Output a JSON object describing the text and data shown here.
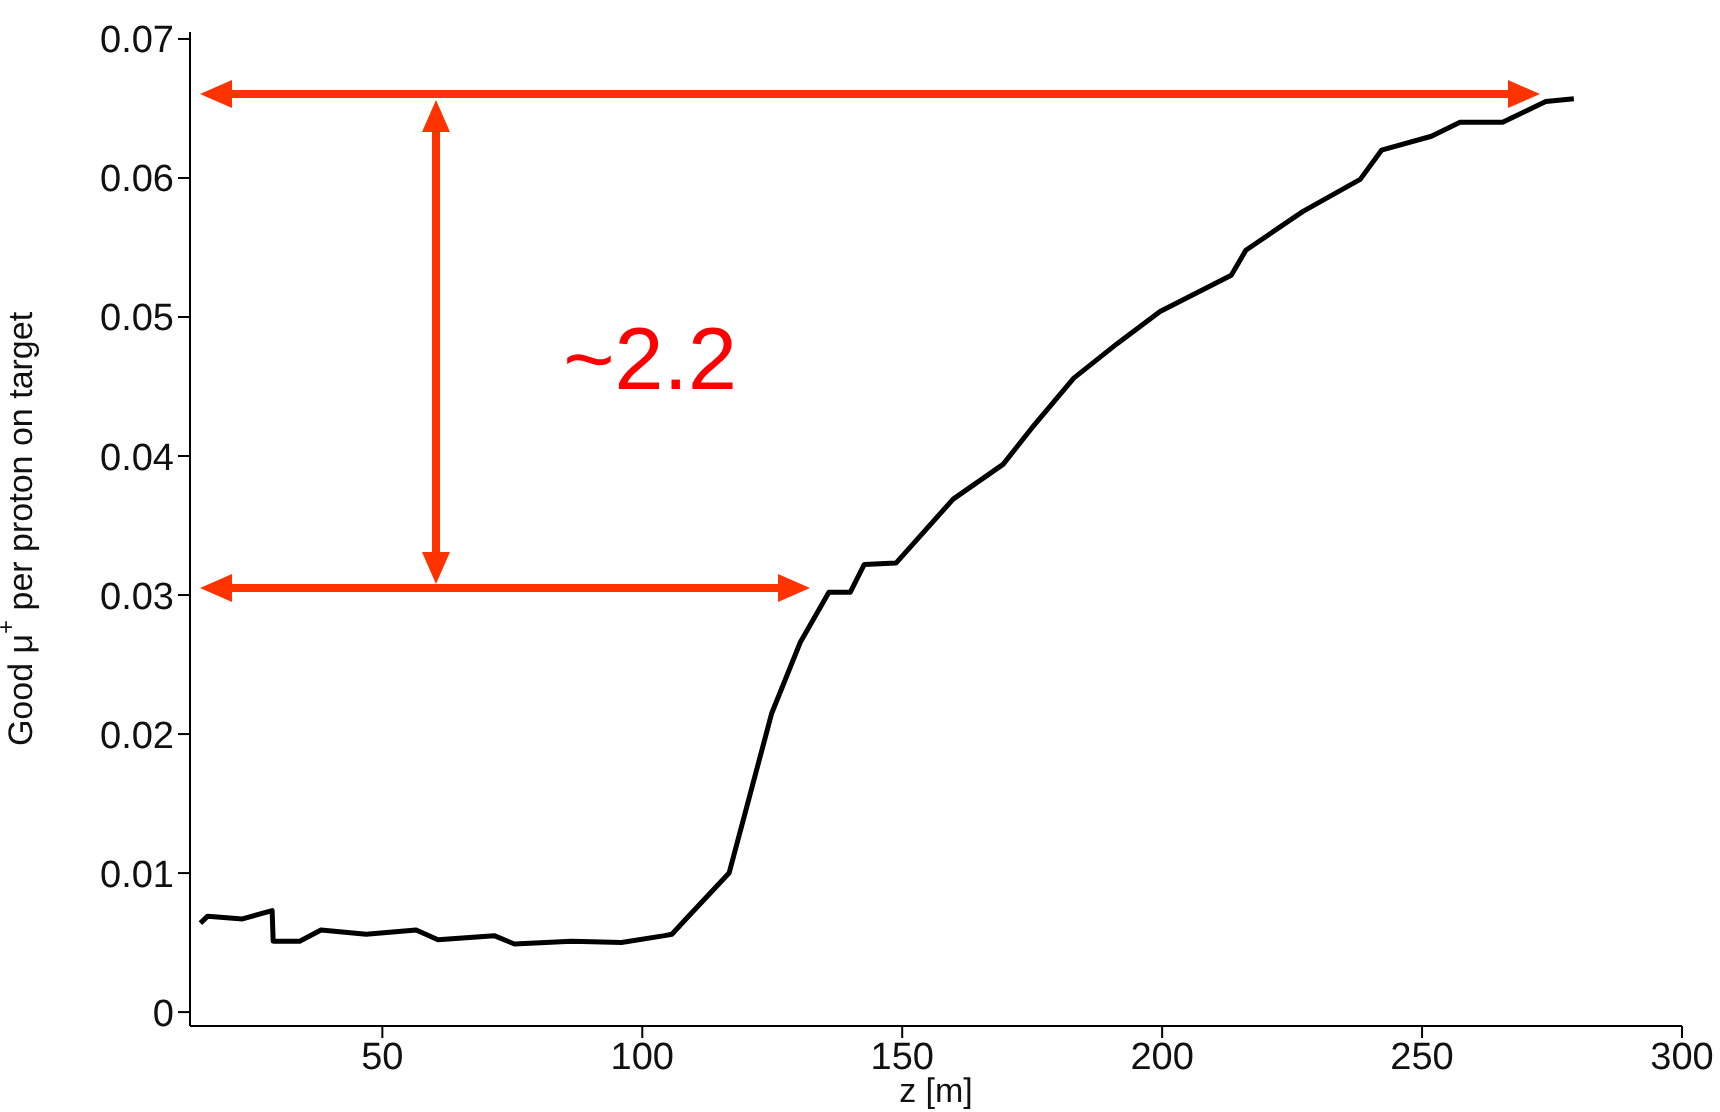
{
  "chart_data": {
    "type": "line",
    "xlabel": "z [m]",
    "ylabel": "Good μ$^{+}$ per proton on target",
    "xlim": [
      13,
      300
    ],
    "ylim": [
      -0.001,
      0.0705
    ],
    "xticks": [
      50,
      100,
      150,
      200,
      250,
      300
    ],
    "yticks": [
      0,
      0.01,
      0.02,
      0.03,
      0.04,
      0.05,
      0.06,
      0.07
    ],
    "annotations": [
      "~2.2"
    ],
    "marker": "none",
    "grid": false,
    "legend": false,
    "series": [
      {
        "color": "#000000",
        "x": [
          15,
          16.4,
          23.1,
          28.8,
          29,
          34.1,
          38.2,
          46.9,
          56.5,
          60.7,
          71.5,
          75.4,
          86.4,
          96,
          104.3,
          105.7,
          108.4,
          116.7,
          124.9,
          130.4,
          135.9,
          140,
          142.7,
          148.8,
          159.8,
          169.4,
          174.9,
          183,
          191.4,
          199.6,
          213.3,
          216.1,
          227.1,
          238.1,
          242.2,
          251.8,
          257.3,
          265.5,
          273.8,
          279.2
        ],
        "values": [
          0.0064,
          0.0069,
          0.0067,
          0.0073,
          0.0051,
          0.0051,
          0.0059,
          0.0056,
          0.0059,
          0.0052,
          0.0055,
          0.0049,
          0.0051,
          0.005,
          0.0055,
          0.0056,
          0.0067,
          0.01,
          0.0215,
          0.0266,
          0.0302,
          0.0302,
          0.0322,
          0.0323,
          0.0369,
          0.0394,
          0.042,
          0.0456,
          0.0481,
          0.0504,
          0.053,
          0.0548,
          0.0576,
          0.0599,
          0.062,
          0.063,
          0.064,
          0.064,
          0.0655,
          0.0657
        ]
      }
    ]
  }
}
